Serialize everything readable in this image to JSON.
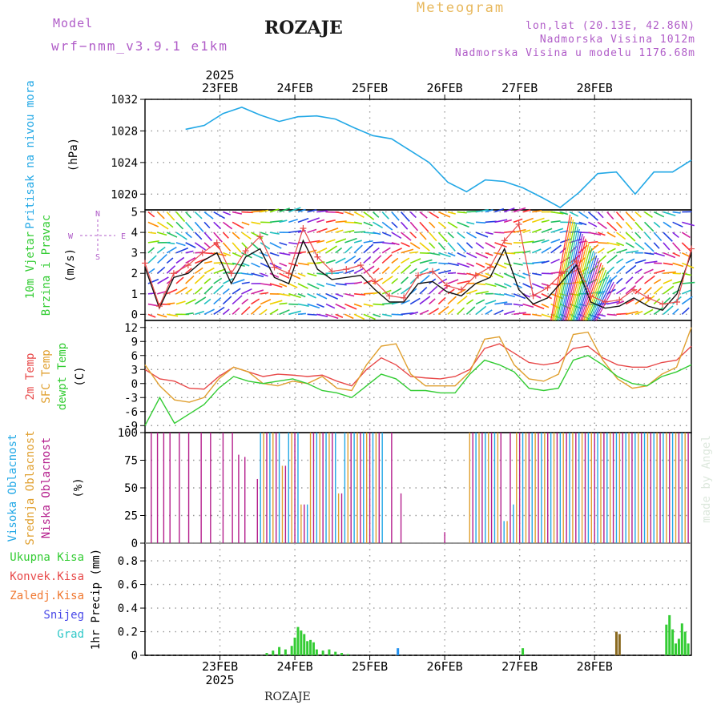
{
  "header": {
    "model_label": "Model",
    "model_name": "wrf−nmm_v3.9.1  e1km",
    "title": "ROZAJE",
    "meteogram_label": "Meteogram",
    "lonlat": "lon,lat (20.13E, 42.86N)",
    "altitude": "Nadmorska Visina 1012m",
    "model_altitude": "Nadmorska Visina u modelu 1176.68m"
  },
  "footer": {
    "station": "ROZAJE"
  },
  "credit": "made by Angel",
  "time_axis": {
    "year": "2025",
    "days": [
      "23FEB",
      "24FEB",
      "25FEB",
      "26FEB",
      "27FEB",
      "28FEB"
    ]
  },
  "chart_data": [
    {
      "type": "line",
      "id": "pressure",
      "ylabel": "(hPa)",
      "side_labels": [
        "Pritisak na nivou mora"
      ],
      "yticks": [
        1020,
        1024,
        1028,
        1032
      ],
      "ylim": [
        1018,
        1032
      ],
      "grid": true,
      "color": "#22a8e6",
      "x_hours": [
        0,
        6,
        12,
        18,
        24,
        30,
        36,
        42,
        48,
        54,
        60,
        66,
        72,
        78,
        84,
        90,
        96,
        102,
        108,
        114,
        120,
        126,
        132,
        138,
        144,
        150,
        156,
        162
      ],
      "values": [
        1028.2,
        1028.7,
        1030.2,
        1031.0,
        1030.0,
        1029.2,
        1029.8,
        1029.9,
        1029.5,
        1028.4,
        1027.4,
        1027.0,
        1025.5,
        1024.0,
        1021.5,
        1020.3,
        1021.8,
        1021.6,
        1020.8,
        1019.6,
        1018.3,
        1020.2,
        1022.6,
        1022.8,
        1020.0,
        1022.8,
        1022.8,
        1024.3
      ]
    },
    {
      "type": "line",
      "id": "wind",
      "ylabel": "(m/s)",
      "side_labels": [
        "10m Vjetar",
        "Brzina i Pravac"
      ],
      "compass": [
        "N",
        "W",
        "E",
        "S"
      ],
      "yticks": [
        0,
        1,
        2,
        3,
        4,
        5
      ],
      "ylim": [
        -0.3,
        5.1
      ],
      "grid": true,
      "series": [
        {
          "color": "#111111",
          "values": [
            2.3,
            0.3,
            1.8,
            2.0,
            2.6,
            3.0,
            1.5,
            2.8,
            3.2,
            1.8,
            1.5,
            3.6,
            2.2,
            1.7,
            1.8,
            1.9,
            1.2,
            0.6,
            0.6,
            1.5,
            1.6,
            1.1,
            0.9,
            1.5,
            1.8,
            3.2,
            1.2,
            0.5,
            0.8,
            1.6,
            2.4,
            0.6,
            0.3,
            0.4,
            0.8,
            0.4,
            0.2,
            1.0,
            3.0
          ]
        },
        {
          "color": "#e84a4a",
          "values": [
            2.5,
            0.4,
            2.0,
            2.4,
            3.0,
            3.5,
            2.0,
            3.1,
            3.8,
            2.3,
            2.0,
            4.2,
            2.8,
            2.1,
            2.2,
            2.4,
            1.6,
            0.9,
            0.8,
            1.9,
            2.1,
            1.4,
            1.2,
            1.9,
            2.3,
            3.6,
            4.4,
            0.9,
            1.3,
            2.0,
            2.6,
            0.9,
            0.6,
            0.7,
            1.2,
            0.8,
            0.5,
            0.6,
            3.2
          ]
        }
      ]
    },
    {
      "type": "line",
      "id": "temperature",
      "ylabel": "(C)",
      "side_labels": [
        "2m Temp",
        "SFC Temp",
        "dewpt Temp"
      ],
      "yticks": [
        -9,
        -6,
        -3,
        0,
        3,
        6,
        9,
        12
      ],
      "ylim": [
        -10.5,
        13.5
      ],
      "grid": true,
      "series": [
        {
          "color": "#e84a4a",
          "values": [
            3.0,
            1.0,
            0.5,
            -1.0,
            -1.2,
            1.5,
            3.5,
            2.5,
            1.5,
            2.0,
            1.8,
            1.5,
            1.8,
            0.5,
            -0.5,
            3.0,
            5.5,
            4.0,
            1.5,
            1.2,
            1.0,
            1.5,
            3.0,
            7.5,
            8.5,
            6.5,
            4.5,
            4.0,
            4.5,
            7.5,
            8.0,
            5.5,
            4.0,
            3.5,
            3.5,
            4.5,
            5.0,
            8.0
          ]
        },
        {
          "color": "#e0a030",
          "values": [
            4.0,
            -0.5,
            -3.5,
            -4.0,
            -3.0,
            1.0,
            3.5,
            2.5,
            0.0,
            -0.5,
            0.5,
            0.0,
            1.5,
            -1.0,
            -1.5,
            4.0,
            8.0,
            8.5,
            2.0,
            -0.5,
            -0.5,
            -0.5,
            2.5,
            9.5,
            10.0,
            4.0,
            1.0,
            0.5,
            2.0,
            10.5,
            11.0,
            5.0,
            1.0,
            -1.0,
            -0.5,
            2.0,
            3.5,
            12.0
          ]
        },
        {
          "color": "#33cc33",
          "values": [
            -9.0,
            -3.0,
            -8.5,
            -6.5,
            -4.5,
            -1.0,
            1.5,
            0.5,
            0.0,
            0.5,
            1.0,
            0.0,
            -1.5,
            -2.0,
            -3.0,
            -0.5,
            2.0,
            1.0,
            -1.5,
            -1.5,
            -2.0,
            -2.0,
            2.0,
            5.0,
            4.0,
            2.5,
            -1.0,
            -1.5,
            -1.0,
            5.0,
            6.0,
            4.0,
            1.5,
            0.0,
            -0.5,
            1.5,
            2.5,
            4.0
          ]
        }
      ]
    },
    {
      "type": "bar",
      "id": "cloud",
      "ylabel": "(%)",
      "side_labels": [
        "Visoka Oblacnost",
        "Srednja Oblacnost",
        "Niska Oblacnost"
      ],
      "yticks": [
        0,
        25,
        50,
        75,
        100
      ],
      "ylim": [
        0,
        100
      ],
      "grid": true,
      "series": [
        {
          "name": "low",
          "color": "#b41e8c"
        },
        {
          "name": "mid",
          "color": "#e0a030"
        },
        {
          "name": "high",
          "color": "#22a8e6"
        }
      ]
    },
    {
      "type": "bar",
      "id": "precip",
      "ylabel": "1hr Precip (mm)",
      "side_labels": [
        "Ukupna Kisa",
        "Konvek.Kisa",
        "Zaledj.Kisa",
        "Snijeg",
        "Grad"
      ],
      "label_colors": [
        "#33cc33",
        "#e84a4a",
        "#f07830",
        "#4a4ae8",
        "#30c8c8"
      ],
      "yticks": [
        0,
        0.2,
        0.4,
        0.6,
        0.8
      ],
      "ylim": [
        0,
        0.95
      ],
      "grid": true,
      "x_hours": [
        26,
        28,
        30,
        32,
        34,
        35,
        36,
        37,
        38,
        39,
        40,
        41,
        42,
        44,
        46,
        48,
        50,
        52,
        68,
        108,
        138,
        139,
        154,
        155,
        156,
        157,
        158,
        159,
        160,
        161
      ],
      "values": [
        0.02,
        0.04,
        0.07,
        0.05,
        0.08,
        0.15,
        0.24,
        0.21,
        0.18,
        0.12,
        0.13,
        0.11,
        0.05,
        0.04,
        0.05,
        0.03,
        0.02,
        0.01,
        0.06,
        0.06,
        0.2,
        0.18,
        0.26,
        0.34,
        0.22,
        0.1,
        0.14,
        0.27,
        0.2,
        0.1
      ]
    }
  ]
}
